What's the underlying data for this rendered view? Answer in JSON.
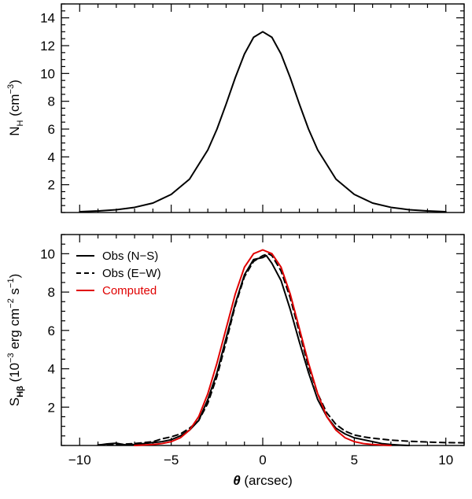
{
  "chart_data": [
    {
      "type": "line",
      "panel": "top",
      "xlabel": "",
      "ylabel": "N_H (cm^-3)",
      "ylabel_parts": {
        "symbol": "N",
        "sub": "H",
        "unit_open": " (cm",
        "unit_exp": "−3",
        "unit_close": ")"
      },
      "xlim": [
        -11,
        11
      ],
      "ylim": [
        0,
        15
      ],
      "yticks": [
        2,
        4,
        6,
        8,
        10,
        12,
        14
      ],
      "ytick_labels": [
        "2",
        "4",
        "6",
        "8",
        "10",
        "12",
        "14"
      ],
      "grid": false,
      "legend": null,
      "series": [
        {
          "color": "#000000",
          "dash": "solid",
          "x": [
            -10,
            -9,
            -8,
            -7,
            -6,
            -5,
            -4,
            -3,
            -2.5,
            -2,
            -1.5,
            -1,
            -0.5,
            0,
            0.5,
            1,
            1.5,
            2,
            2.5,
            3,
            4,
            5,
            6,
            7,
            8,
            9,
            10
          ],
          "y": [
            0.06,
            0.11,
            0.2,
            0.37,
            0.68,
            1.3,
            2.4,
            4.5,
            6.0,
            7.8,
            9.7,
            11.4,
            12.6,
            13.0,
            12.6,
            11.4,
            9.7,
            7.8,
            6.0,
            4.5,
            2.4,
            1.3,
            0.68,
            0.37,
            0.2,
            0.11,
            0.06
          ]
        }
      ]
    },
    {
      "type": "line",
      "panel": "bottom",
      "xlabel": "θ (arcsec)",
      "xlabel_parts": {
        "symbol": "θ",
        "rest": " (arcsec)"
      },
      "ylabel": "S_Hβ (10^-3 erg cm^-2 s^-1)",
      "ylabel_parts": {
        "symbol": "S",
        "sub": "Hβ",
        "p1": " (10",
        "e1": "−3",
        "p2": " erg cm",
        "e2": "−2",
        "p3": " s",
        "e3": "−1",
        "p4": ")"
      },
      "xlim": [
        -11,
        11
      ],
      "ylim": [
        0,
        11
      ],
      "xticks": [
        -10,
        -5,
        0,
        5,
        10
      ],
      "xtick_labels": [
        "−10",
        "−5",
        "0",
        "5",
        "10"
      ],
      "yticks": [
        2,
        4,
        6,
        8,
        10
      ],
      "ytick_labels": [
        "2",
        "4",
        "6",
        "8",
        "10"
      ],
      "grid": false,
      "legend_position": "top-left",
      "series": [
        {
          "name": "Obs (N−S)",
          "color": "#000000",
          "dash": "solid",
          "x": [
            -9,
            -8.5,
            -8,
            -7.5,
            -7,
            -6.5,
            -6,
            -5.5,
            -5,
            -4.5,
            -4,
            -3.5,
            -3,
            -2.5,
            -2,
            -1.5,
            -1,
            -0.5,
            0,
            0.2,
            0.5,
            1,
            1.5,
            2,
            2.5,
            3,
            3.5,
            4,
            4.5,
            5,
            5.5,
            6,
            6.5,
            7,
            7.5,
            8
          ],
          "y": [
            0.02,
            0.08,
            0.12,
            0.03,
            0.05,
            0.1,
            0.15,
            0.2,
            0.3,
            0.5,
            0.8,
            1.3,
            2.4,
            3.8,
            5.6,
            7.4,
            8.9,
            9.7,
            9.8,
            9.9,
            9.5,
            8.6,
            7.1,
            5.4,
            3.8,
            2.4,
            1.5,
            0.9,
            0.6,
            0.4,
            0.3,
            0.2,
            0.1,
            0.05,
            0.02,
            0.0
          ]
        },
        {
          "name": "Obs (E−W)",
          "color": "#000000",
          "dash": "dashed",
          "x": [
            -9,
            -8,
            -7,
            -6,
            -5.5,
            -5,
            -4.5,
            -4,
            -3.5,
            -3,
            -2.5,
            -2,
            -1.5,
            -1,
            -0.5,
            0,
            0.3,
            0.5,
            1,
            1.5,
            2,
            2.5,
            3,
            3.5,
            4,
            4.5,
            5,
            5.5,
            6,
            7,
            8,
            9,
            10,
            11
          ],
          "y": [
            0.03,
            0.05,
            0.1,
            0.2,
            0.35,
            0.45,
            0.6,
            0.9,
            1.3,
            2.2,
            3.6,
            5.4,
            7.3,
            8.8,
            9.6,
            9.9,
            10.0,
            9.9,
            9.1,
            7.7,
            5.9,
            4.1,
            2.7,
            1.7,
            1.1,
            0.75,
            0.55,
            0.45,
            0.38,
            0.28,
            0.22,
            0.18,
            0.15,
            0.14
          ]
        },
        {
          "name": "Computed",
          "color": "#e00000",
          "dash": "solid",
          "x": [
            -7,
            -6,
            -5.5,
            -5,
            -4.5,
            -4,
            -3.5,
            -3,
            -2.5,
            -2,
            -1.5,
            -1,
            -0.5,
            0,
            0.5,
            1,
            1.5,
            2,
            2.5,
            3,
            3.5,
            4,
            4.5,
            5,
            5.5,
            6,
            7
          ],
          "y": [
            0.0,
            0.05,
            0.1,
            0.2,
            0.4,
            0.8,
            1.5,
            2.7,
            4.3,
            6.1,
            7.9,
            9.3,
            10.0,
            10.2,
            10.0,
            9.3,
            7.9,
            6.1,
            4.3,
            2.7,
            1.5,
            0.8,
            0.4,
            0.2,
            0.1,
            0.05,
            0.0
          ]
        }
      ]
    }
  ]
}
